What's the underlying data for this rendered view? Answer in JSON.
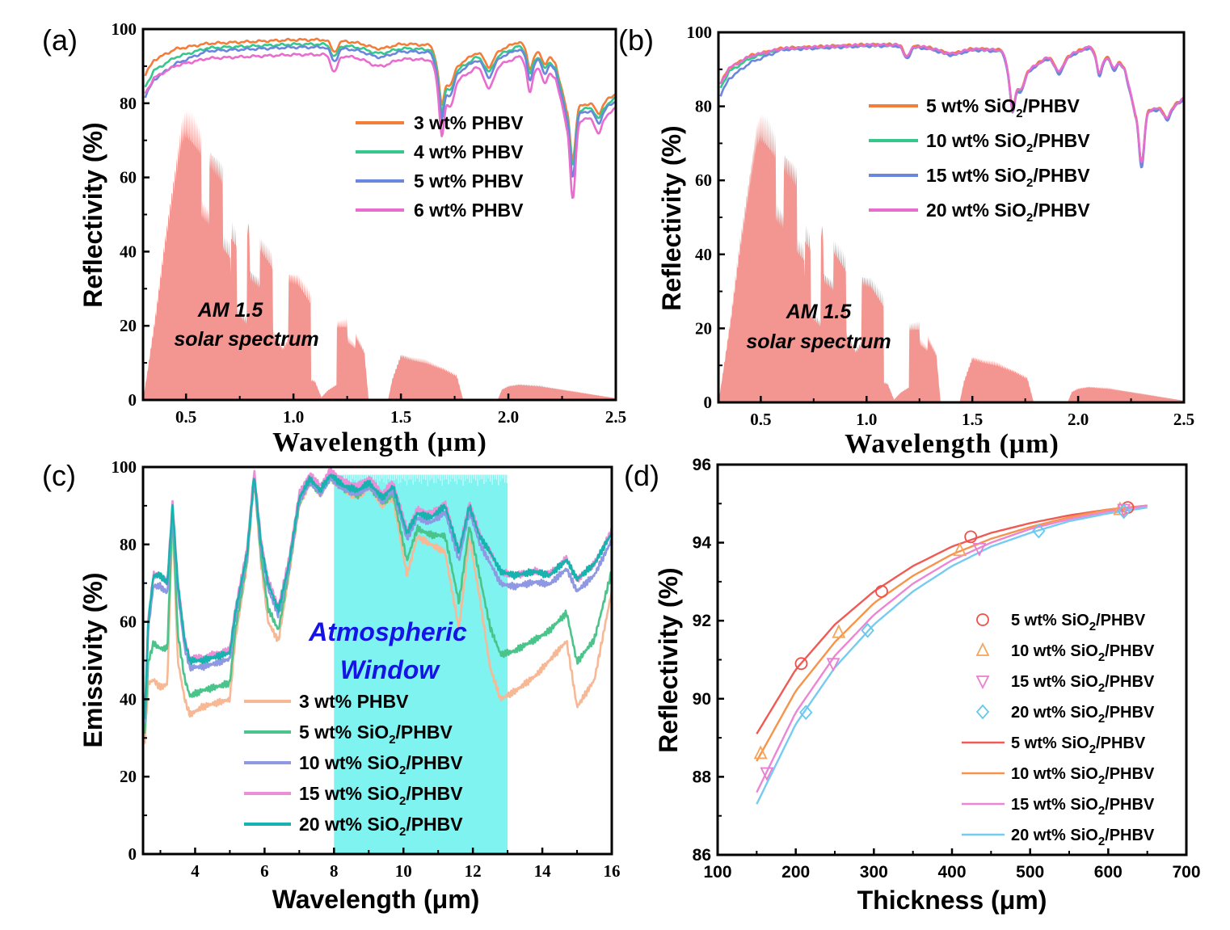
{
  "chart_data": [
    {
      "id": "a",
      "panel_label": "(a)",
      "type": "line",
      "xlabel": "Wavelength (μm)",
      "ylabel": "Reflectivity (%)",
      "xlim": [
        0.3,
        2.5
      ],
      "ylim": [
        0,
        100
      ],
      "xticks": [
        "0.5",
        "1.0",
        "1.5",
        "2.0",
        "2.5"
      ],
      "yticks": [
        "0",
        "20",
        "40",
        "60",
        "80",
        "100"
      ],
      "annotation": [
        "AM 1.5",
        "solar spectrum"
      ],
      "background_spectrum_color": "#f28b85",
      "series": [
        {
          "name": "3 wt% PHBV",
          "color": "#f47d3a"
        },
        {
          "name": "4 wt% PHBV",
          "color": "#35c88c"
        },
        {
          "name": "5 wt% PHBV",
          "color": "#6b86dd"
        },
        {
          "name": "6 wt% PHBV",
          "color": "#e96ccf"
        }
      ]
    },
    {
      "id": "b",
      "panel_label": "(b)",
      "type": "line",
      "xlabel": "Wavelength (μm)",
      "ylabel": "Reflectivity (%)",
      "xlim": [
        0.3,
        2.5
      ],
      "ylim": [
        0,
        100
      ],
      "xticks": [
        "0.5",
        "1.0",
        "1.5",
        "2.0",
        "2.5"
      ],
      "yticks": [
        "0",
        "20",
        "40",
        "60",
        "80",
        "100"
      ],
      "annotation": [
        "AM 1.5",
        "solar spectrum"
      ],
      "background_spectrum_color": "#f28b85",
      "series": [
        {
          "name": "5 wt% SiO2/PHBV",
          "prefix": "5 wt% SiO",
          "sub": "2",
          "suffix": "/PHBV",
          "color": "#f47d3a"
        },
        {
          "name": "10 wt% SiO2/PHBV",
          "prefix": "10 wt% SiO",
          "sub": "2",
          "suffix": "/PHBV",
          "color": "#35c88c"
        },
        {
          "name": "15 wt% SiO2/PHBV",
          "prefix": "15 wt% SiO",
          "sub": "2",
          "suffix": "/PHBV",
          "color": "#6b86dd"
        },
        {
          "name": "20 wt% SiO2/PHBV",
          "prefix": "20 wt% SiO",
          "sub": "2",
          "suffix": "/PHBV",
          "color": "#e96ccf"
        }
      ]
    },
    {
      "id": "c",
      "panel_label": "(c)",
      "type": "line",
      "xlabel": "Wavelength (μm)",
      "ylabel": "Emissivity (%)",
      "xlim": [
        2.5,
        16
      ],
      "ylim": [
        0,
        100
      ],
      "xticks": [
        "4",
        "6",
        "8",
        "10",
        "12",
        "14",
        "16"
      ],
      "yticks": [
        "0",
        "20",
        "40",
        "60",
        "80",
        "100"
      ],
      "annotation": [
        "Atmospheric",
        "Window"
      ],
      "window_range": [
        8,
        13
      ],
      "window_color": "#7ff3f0",
      "series": [
        {
          "name": "3 wt% PHBV",
          "prefix": "3 wt% PHBV",
          "sub": "",
          "suffix": "",
          "color": "#f7b895"
        },
        {
          "name": "5 wt% SiO2/PHBV",
          "prefix": "5 wt% SiO",
          "sub": "2",
          "suffix": "/PHBV",
          "color": "#4ac48a"
        },
        {
          "name": "10 wt% SiO2/PHBV",
          "prefix": "10 wt% SiO",
          "sub": "2",
          "suffix": "/PHBV",
          "color": "#8f98e2"
        },
        {
          "name": "15 wt% SiO2/PHBV",
          "prefix": "15 wt% SiO",
          "sub": "2",
          "suffix": "/PHBV",
          "color": "#ea8fd8"
        },
        {
          "name": "20 wt% SiO2/PHBV",
          "prefix": "20 wt% SiO",
          "sub": "2",
          "suffix": "/PHBV",
          "color": "#17b3ae"
        }
      ]
    },
    {
      "id": "d",
      "panel_label": "(d)",
      "type": "scatter",
      "xlabel": "Thickness (μm)",
      "ylabel": "Reflectivity (%)",
      "xlim": [
        100,
        700
      ],
      "ylim": [
        86,
        96
      ],
      "xticks": [
        "100",
        "200",
        "300",
        "400",
        "500",
        "600",
        "700"
      ],
      "yticks": [
        "86",
        "88",
        "90",
        "92",
        "94",
        "96"
      ],
      "series": [
        {
          "name": "5 wt% SiO2/PHBV",
          "prefix": "5 wt% SiO",
          "sub": "2",
          "suffix": "/PHBV",
          "kind": "points",
          "marker": "circle",
          "color": "#f0504a",
          "x": [
            207,
            310,
            424,
            625
          ],
          "y": [
            90.9,
            92.75,
            94.15,
            94.9
          ]
        },
        {
          "name": "10 wt% SiO2/PHBV",
          "prefix": "10 wt% SiO",
          "sub": "2",
          "suffix": "/PHBV",
          "kind": "points",
          "marker": "triangle-up",
          "color": "#f5a45d",
          "x": [
            155,
            255,
            410,
            615
          ],
          "y": [
            88.6,
            91.7,
            93.8,
            94.85
          ]
        },
        {
          "name": "15 wt% SiO2/PHBV",
          "prefix": "15 wt% SiO",
          "sub": "2",
          "suffix": "/PHBV",
          "kind": "points",
          "marker": "triangle-down",
          "color": "#e87fd0",
          "x": [
            163,
            248,
            435,
            620
          ],
          "y": [
            88.1,
            90.9,
            93.85,
            94.85
          ]
        },
        {
          "name": "20 wt% SiO2/PHBV",
          "prefix": "20 wt% SiO",
          "sub": "2",
          "suffix": "/PHBV",
          "kind": "points",
          "marker": "diamond",
          "color": "#66c8f0",
          "x": [
            213,
            292,
            511,
            620
          ],
          "y": [
            89.65,
            91.75,
            94.3,
            94.8
          ]
        },
        {
          "name": "5 wt% SiO2/PHBV",
          "prefix": "5 wt% SiO",
          "sub": "2",
          "suffix": "/PHBV",
          "kind": "fit",
          "color": "#f05a55",
          "x": [
            150,
            200,
            250,
            300,
            350,
            400,
            450,
            500,
            550,
            600,
            650
          ],
          "y": [
            89.1,
            90.75,
            91.9,
            92.75,
            93.4,
            93.9,
            94.25,
            94.5,
            94.7,
            94.85,
            94.95
          ]
        },
        {
          "name": "10 wt% SiO2/PHBV",
          "prefix": "10 wt% SiO",
          "sub": "2",
          "suffix": "/PHBV",
          "kind": "fit",
          "color": "#f5944a",
          "x": [
            150,
            200,
            250,
            300,
            350,
            400,
            450,
            500,
            550,
            600,
            650
          ],
          "y": [
            88.4,
            90.2,
            91.45,
            92.45,
            93.15,
            93.7,
            94.1,
            94.4,
            94.65,
            94.85,
            94.95
          ]
        },
        {
          "name": "15 wt% SiO2/PHBV",
          "prefix": "15 wt% SiO",
          "sub": "2",
          "suffix": "/PHBV",
          "kind": "fit",
          "color": "#ec86d4",
          "x": [
            150,
            200,
            250,
            300,
            350,
            400,
            450,
            500,
            550,
            600,
            650
          ],
          "y": [
            87.6,
            89.65,
            91.1,
            92.15,
            92.95,
            93.55,
            94.0,
            94.35,
            94.6,
            94.8,
            94.95
          ]
        },
        {
          "name": "20 wt% SiO2/PHBV",
          "prefix": "20 wt% SiO",
          "sub": "2",
          "suffix": "/PHBV",
          "kind": "fit",
          "color": "#76cbf0",
          "x": [
            150,
            200,
            250,
            300,
            350,
            400,
            450,
            500,
            550,
            600,
            650
          ],
          "y": [
            87.3,
            89.35,
            90.8,
            91.9,
            92.75,
            93.4,
            93.9,
            94.25,
            94.55,
            94.75,
            94.9
          ]
        }
      ]
    }
  ]
}
